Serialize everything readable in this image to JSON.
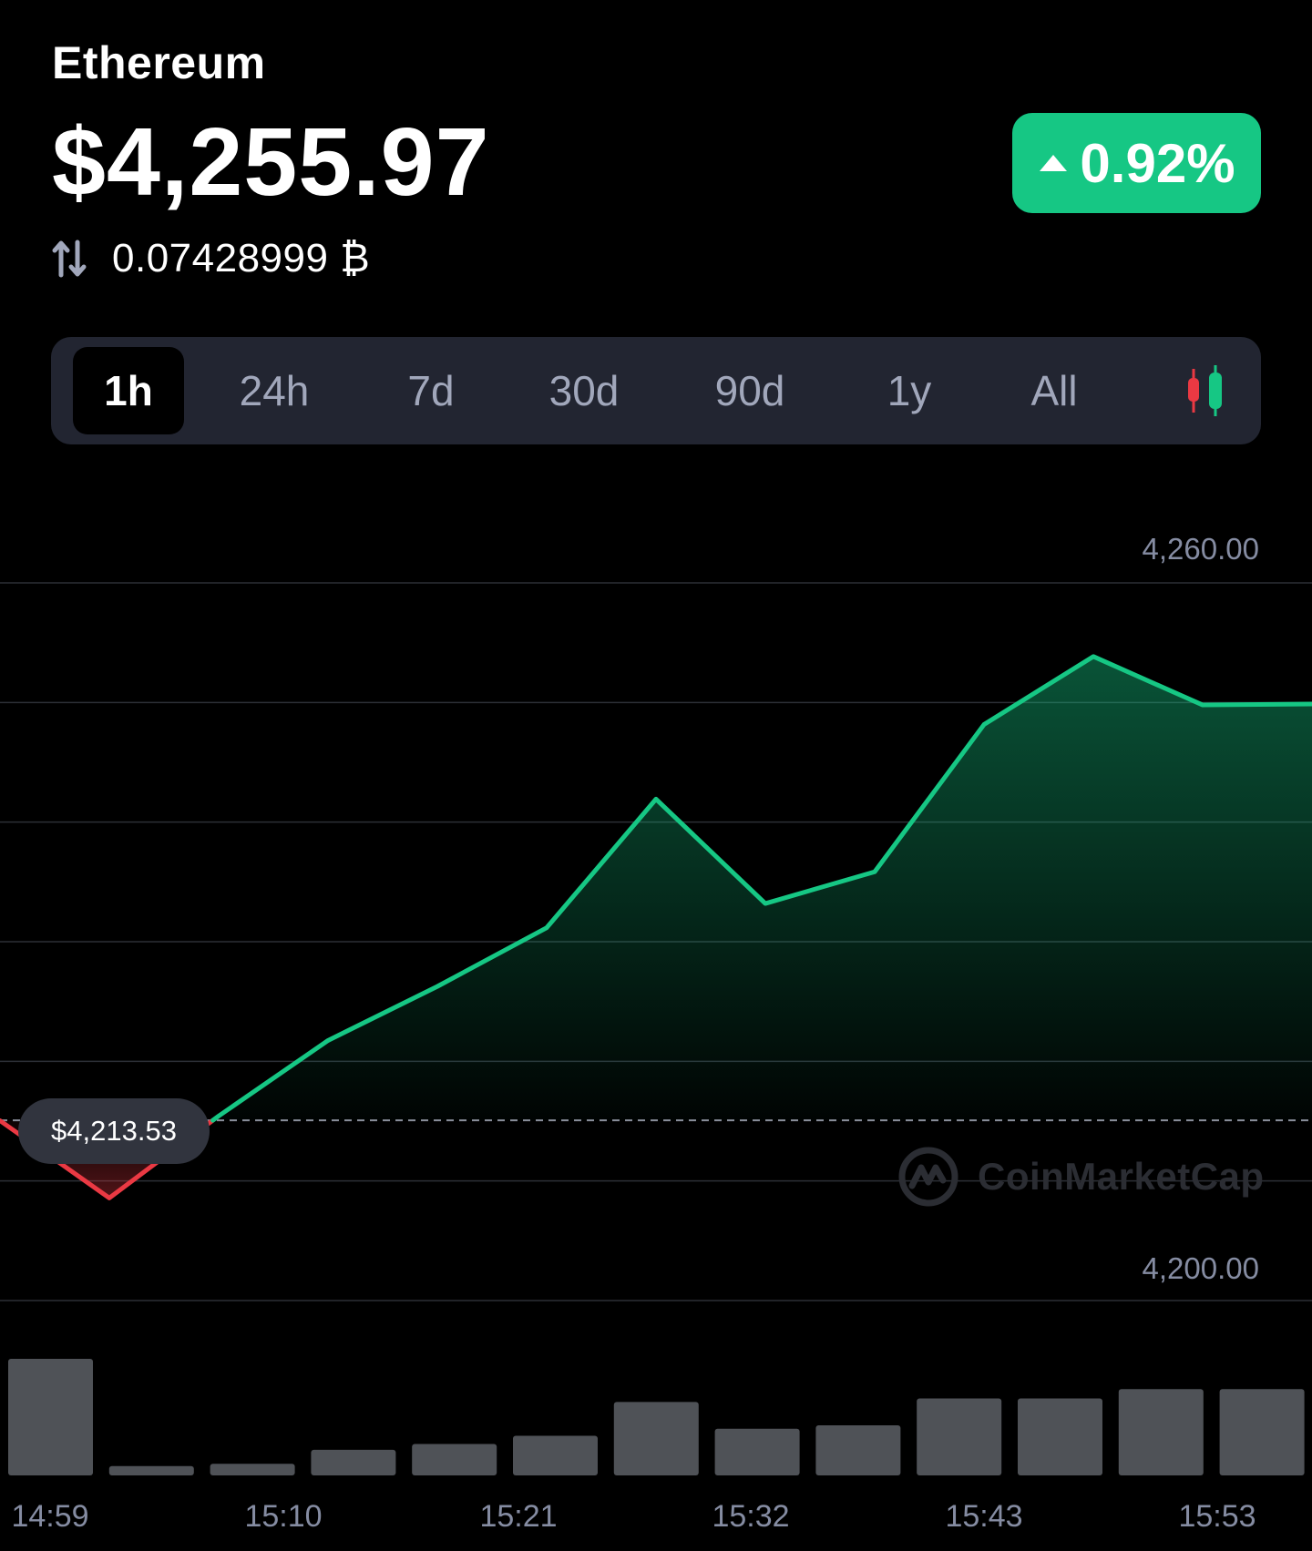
{
  "header": {
    "coin_name": "Ethereum",
    "price": "$4,255.97",
    "btc_value": "0.07428999 ₿",
    "swap_icon": "swap-arrows-icon",
    "change": {
      "text": "0.92%",
      "direction": "up",
      "icon": "caret-up-icon",
      "color": "#16c784"
    }
  },
  "timeframes": {
    "tabs": [
      {
        "label": "1h",
        "active": true
      },
      {
        "label": "24h",
        "active": false
      },
      {
        "label": "7d",
        "active": false
      },
      {
        "label": "30d",
        "active": false
      },
      {
        "label": "90d",
        "active": false
      },
      {
        "label": "1y",
        "active": false
      },
      {
        "label": "All",
        "active": false
      }
    ],
    "candlestick_icon": "candlestick-chart-icon"
  },
  "watermark": {
    "icon": "coinmarketcap-logo-icon",
    "text": "CoinMarketCap"
  },
  "chart_data": {
    "type": "area",
    "title": "",
    "reference_price": 4213.53,
    "reference_label": "$4,213.53",
    "y_tick_labels": [
      "4,260.00",
      "4,200.00"
    ],
    "ylim": [
      4194.2,
      4271.2
    ],
    "grid": true,
    "x_tick_labels": [
      "14:59",
      "15:10",
      "15:21",
      "15:32",
      "15:43",
      "15:53"
    ],
    "colors": {
      "up": "#16c784",
      "down": "#ea3943",
      "volume": "#4f5257",
      "grid": "#2c2f36",
      "axis_text": "#858ca2"
    },
    "price_series": [
      {
        "x": "14:54",
        "y": 4213.5
      },
      {
        "x": "14:59",
        "y": 4205.2
      },
      {
        "x": "15:04",
        "y": 4214.0
      },
      {
        "x": "15:10",
        "y": 4222.1
      },
      {
        "x": "15:15",
        "y": 4227.9
      },
      {
        "x": "15:21",
        "y": 4234.2
      },
      {
        "x": "15:26",
        "y": 4248.0
      },
      {
        "x": "15:32",
        "y": 4236.8
      },
      {
        "x": "15:37",
        "y": 4240.2
      },
      {
        "x": "15:43",
        "y": 4256.0
      },
      {
        "x": "15:48",
        "y": 4263.3
      },
      {
        "x": "15:53",
        "y": 4258.1
      },
      {
        "x": "15:59",
        "y": 4258.2
      }
    ],
    "volume_series": [
      1.0,
      0.08,
      0.1,
      0.22,
      0.27,
      0.34,
      0.63,
      0.4,
      0.43,
      0.66,
      0.66,
      0.74,
      0.74
    ]
  }
}
